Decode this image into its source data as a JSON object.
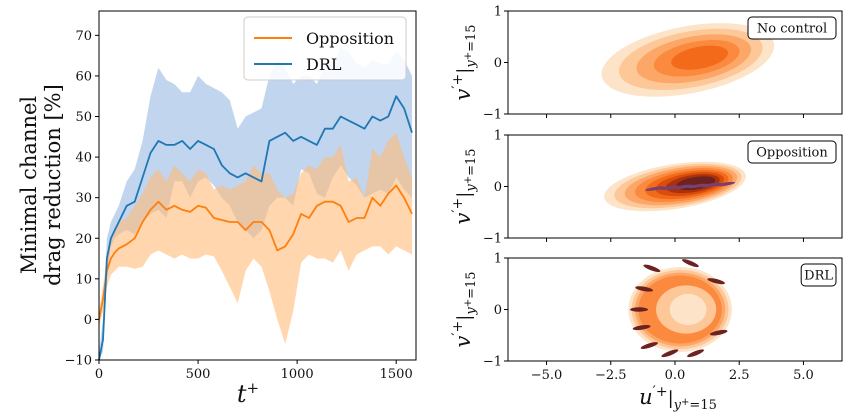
{
  "chart_data": [
    {
      "type": "line",
      "ylabel_line1": "Minimal channel",
      "ylabel_line2": "drag reduction [%]",
      "xlabel_main": "t",
      "xlabel_sup": "+",
      "xlim": [
        0,
        1600
      ],
      "ylim": [
        -10,
        76
      ],
      "xticks": [
        0,
        500,
        1000,
        1500
      ],
      "yticks": [
        -10,
        0,
        10,
        20,
        30,
        40,
        50,
        60,
        70
      ],
      "legend": "top-right",
      "series": [
        {
          "name": "Opposition",
          "color": "#ff7f0e",
          "band_color": "#ffbb78",
          "x": [
            0,
            20,
            40,
            60,
            80,
            100,
            140,
            180,
            220,
            260,
            300,
            340,
            380,
            420,
            460,
            500,
            540,
            580,
            620,
            660,
            700,
            740,
            780,
            820,
            860,
            900,
            940,
            980,
            1020,
            1060,
            1100,
            1140,
            1180,
            1220,
            1260,
            1300,
            1340,
            1380,
            1420,
            1460,
            1500,
            1540,
            1580
          ],
          "y": [
            0,
            5,
            12,
            15,
            16.5,
            17.5,
            18.5,
            20,
            24,
            27,
            29,
            27,
            28,
            27,
            26.5,
            28,
            27.5,
            25,
            24.5,
            24,
            24,
            22,
            24,
            24,
            22,
            17,
            18,
            21,
            26,
            25,
            28,
            29,
            29,
            28,
            24,
            25,
            25,
            30,
            28,
            31,
            33,
            30,
            26
          ],
          "lower": [
            -2,
            2,
            8,
            11,
            12,
            13,
            13,
            12.5,
            13,
            16,
            17,
            16,
            15,
            16,
            15,
            15,
            16,
            15.5,
            12,
            8,
            4,
            12,
            15,
            13,
            7,
            0,
            -6,
            2,
            14,
            16,
            15,
            15,
            14,
            17,
            12,
            16,
            17,
            18,
            18,
            16,
            18,
            17,
            16
          ],
          "upper": [
            2,
            8,
            16,
            19,
            22,
            24,
            25,
            28,
            31,
            35,
            37,
            34,
            38,
            36,
            34,
            37,
            36,
            32,
            33,
            32,
            33,
            34,
            38,
            36,
            36,
            32,
            30,
            31,
            36,
            38,
            37,
            40,
            40,
            43,
            34,
            35,
            30,
            42,
            40,
            44,
            46,
            40,
            35
          ]
        },
        {
          "name": "DRL",
          "color": "#1f77b4",
          "band_color": "#aec7e8",
          "x": [
            0,
            20,
            40,
            60,
            80,
            100,
            140,
            180,
            220,
            260,
            300,
            340,
            380,
            420,
            460,
            500,
            540,
            580,
            620,
            660,
            700,
            740,
            780,
            820,
            860,
            900,
            940,
            980,
            1020,
            1060,
            1100,
            1140,
            1180,
            1220,
            1260,
            1300,
            1340,
            1380,
            1420,
            1460,
            1500,
            1540,
            1580
          ],
          "y": [
            -10,
            -5,
            15,
            20,
            22,
            24,
            28,
            29,
            35,
            41,
            44,
            43,
            43,
            44,
            42,
            44,
            43,
            42,
            38,
            36,
            35,
            36,
            35,
            34,
            44,
            45,
            46,
            44,
            45,
            44,
            43,
            47,
            47,
            50,
            49,
            48,
            47,
            50,
            49,
            50,
            55,
            52,
            46
          ],
          "lower": [
            -12,
            -8,
            10,
            18,
            20,
            21,
            22,
            21,
            24,
            26,
            27,
            25,
            34,
            34,
            30,
            34,
            35,
            33,
            30,
            28,
            24,
            22,
            20,
            22,
            28,
            30,
            30,
            28,
            37,
            36,
            31,
            30,
            35,
            38,
            35,
            33,
            30,
            31,
            32,
            31,
            35,
            32,
            30
          ],
          "upper": [
            -8,
            0,
            20,
            24,
            26,
            28,
            34,
            37,
            44,
            55,
            62,
            59,
            58,
            56,
            56,
            60,
            58,
            57,
            56,
            54,
            47,
            50,
            51,
            52,
            60,
            64,
            62,
            58,
            60,
            60,
            58,
            63,
            63,
            67,
            66,
            63,
            62,
            64,
            63,
            63,
            66,
            64,
            60
          ]
        }
      ]
    },
    {
      "type": "heatmap",
      "subtype": "filled-contour",
      "panels": [
        {
          "tag": "No control",
          "mean": [
            0.5,
            0.05
          ],
          "spread": [
            2.2,
            0.42
          ],
          "slope": -0.12,
          "hole": 0,
          "dark": 0
        },
        {
          "tag": "Opposition",
          "mean": [
            0.0,
            0.0
          ],
          "spread": [
            1.8,
            0.28
          ],
          "slope": -0.1,
          "hole": 0,
          "dark": 1
        },
        {
          "tag": "DRL",
          "mean": [
            0.2,
            0.0
          ],
          "spread": [
            1.3,
            0.55
          ],
          "slope": 0.0,
          "hole": 1,
          "dark": 1
        }
      ],
      "ylabel_base": "v",
      "ylabel_sup": "′+",
      "ylabel_sub": "y",
      "ylabel_subsup": "+",
      "ylabel_subtail": "=15",
      "xlabel_base": "u",
      "xlabel_sup": "′+",
      "xlabel_sub": "y",
      "xlabel_subsup": "+",
      "xlabel_subtail": "=15",
      "xlim": [
        -6.5,
        6.5
      ],
      "ylim": [
        -1,
        1
      ],
      "xticks": [
        -5.0,
        -2.5,
        0.0,
        2.5,
        5.0
      ],
      "xtick_labels": [
        "−5.0",
        "−2.5",
        "0.0",
        "2.5",
        "5.0"
      ],
      "yticks": [
        -1,
        0,
        1
      ],
      "ytick_labels": [
        "−1",
        "0",
        "1"
      ],
      "ytick_label_neg10": "−10",
      "colors": [
        "#fde3c8",
        "#fdc798",
        "#fca768",
        "#fb8a3e",
        "#f36b1a",
        "#d94c0c",
        "#a8320b",
        "#6d2222",
        "#7a3f6e"
      ]
    }
  ]
}
